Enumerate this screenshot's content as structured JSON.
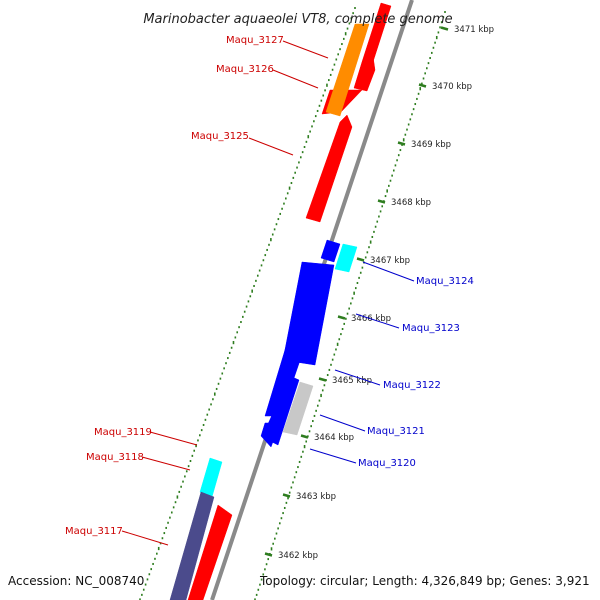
{
  "title": "Marinobacter aquaeolei VT8, complete genome",
  "footer": {
    "accession": "Accession: NC_008740",
    "topology": "Topology: circular; Length: 4,326,849 bp; Genes: 3,921"
  },
  "colors": {
    "backbone": "#8a8a8a",
    "tick": "#2e7d1f",
    "label_left": "#cc0000",
    "label_right": "#0000cc"
  },
  "ticks": [
    "3462 kbp",
    "3463 kbp",
    "3464 kbp",
    "3465 kbp",
    "3466 kbp",
    "3467 kbp",
    "3468 kbp",
    "3469 kbp",
    "3470 kbp",
    "3471 kbp"
  ],
  "labels": [
    {
      "text": "Maqu_3127",
      "side": "left"
    },
    {
      "text": "Maqu_3126",
      "side": "left"
    },
    {
      "text": "Maqu_3125",
      "side": "left"
    },
    {
      "text": "Maqu_3124",
      "side": "right"
    },
    {
      "text": "Maqu_3123",
      "side": "right"
    },
    {
      "text": "Maqu_3122",
      "side": "right"
    },
    {
      "text": "Maqu_3121",
      "side": "right"
    },
    {
      "text": "Maqu_3120",
      "side": "right"
    },
    {
      "text": "Maqu_3119",
      "side": "left"
    },
    {
      "text": "Maqu_3118",
      "side": "left"
    },
    {
      "text": "Maqu_3117",
      "side": "left"
    }
  ],
  "genes": [
    {
      "strand": "forward",
      "color": "#ff0000"
    },
    {
      "strand": "forward",
      "color": "#ff0000"
    },
    {
      "strand": "forward",
      "color": "#ff0000"
    },
    {
      "strand": "forward",
      "color": "#ff0000"
    },
    {
      "strand": "forward",
      "color": "#ff0000"
    },
    {
      "strand": "forward",
      "color": "#ff8c00"
    },
    {
      "strand": "forward",
      "color": "#00ffff"
    },
    {
      "strand": "forward",
      "color": "#c8c8c8"
    },
    {
      "strand": "reverse",
      "color": "#0000ff"
    },
    {
      "strand": "reverse",
      "color": "#0000ff"
    },
    {
      "strand": "reverse",
      "color": "#0000ff"
    },
    {
      "strand": "reverse",
      "color": "#0000ff"
    },
    {
      "strand": "reverse",
      "color": "#0000ff"
    },
    {
      "strand": "forward",
      "color": "#00ffff"
    },
    {
      "strand": "forward",
      "color": "#4b4b8c"
    }
  ]
}
